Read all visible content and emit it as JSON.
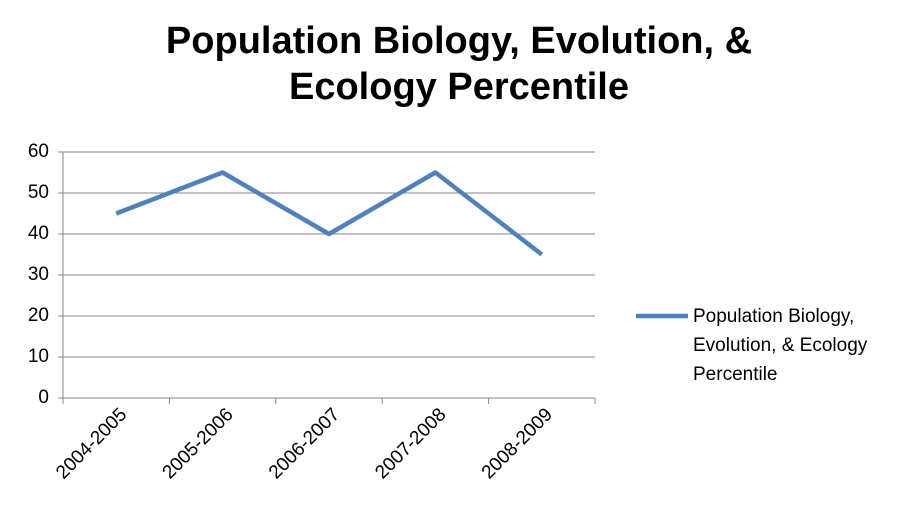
{
  "chart_data": {
    "type": "line",
    "title": "Population Biology, Evolution, & Ecology Percentile",
    "categories": [
      "2004-2005",
      "2005-2006",
      "2006-2007",
      "2007-2008",
      "2008-2009"
    ],
    "series": [
      {
        "name": "Population Biology, Evolution, & Ecology Percentile",
        "color": "#4f81bd",
        "values": [
          45,
          55,
          40,
          55,
          35
        ]
      }
    ],
    "ylim": [
      0,
      60
    ],
    "yticks": [
      0,
      10,
      20,
      30,
      40,
      50,
      60
    ],
    "grid": true,
    "legend": "right"
  }
}
